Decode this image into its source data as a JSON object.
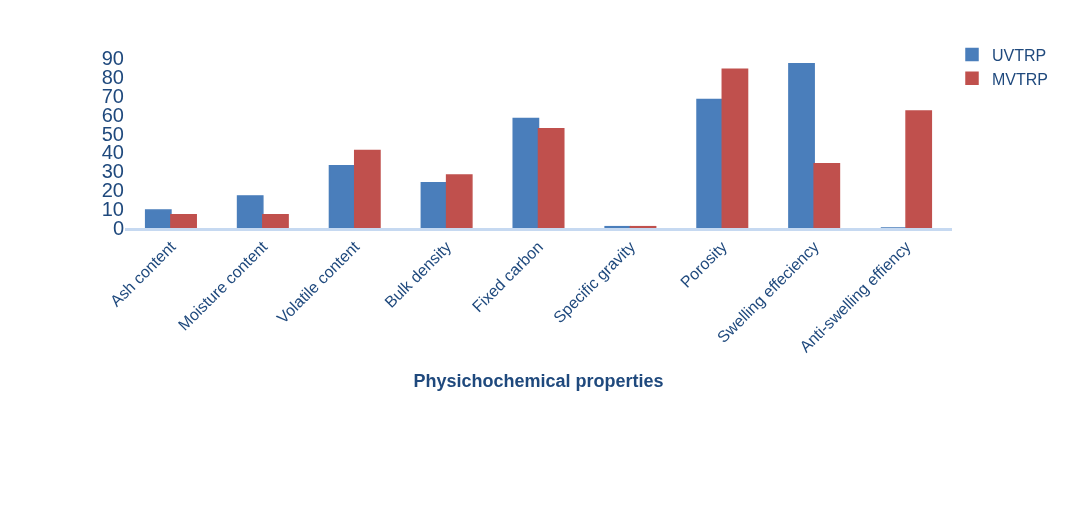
{
  "chart_data": {
    "type": "bar",
    "xlabel": "Physichochemical properties",
    "categories": [
      "Ash content",
      "Moisture content",
      "Volatile content",
      "Bulk density",
      "Fixed carbon",
      "Specific gravity",
      "Porosity",
      "Swelling effeciency",
      "Anti-swelling effiency"
    ],
    "series": [
      {
        "name": "UVTRP",
        "color": "#4a7ebb",
        "values": [
          9.5,
          17,
          33,
          24,
          58,
          0.7,
          68,
          87,
          0
        ]
      },
      {
        "name": "MVTRP",
        "color": "#c0504d",
        "values": [
          7,
          7,
          41,
          28,
          52.5,
          0.7,
          84,
          34,
          62
        ]
      }
    ],
    "ylim": [
      0,
      90
    ],
    "yticks": [
      0,
      10,
      20,
      30,
      40,
      50,
      60,
      70,
      80,
      90
    ],
    "legend": "top right"
  }
}
